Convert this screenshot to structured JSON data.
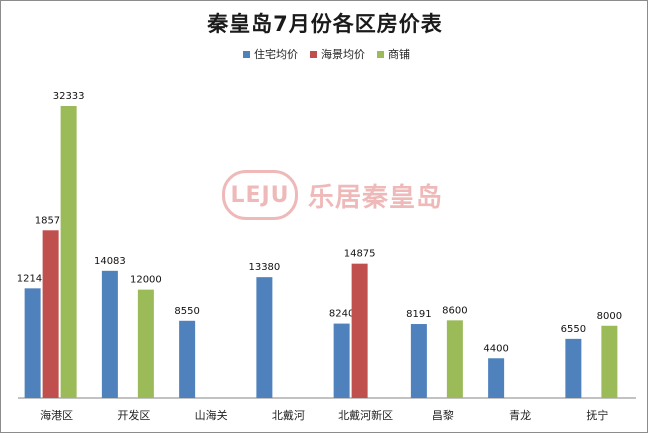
{
  "chart_data": {
    "type": "bar",
    "title": "秦皇岛7月份各区房价表",
    "categories": [
      "海港区",
      "开发区",
      "山海关",
      "北戴河",
      "北戴河新区",
      "昌黎",
      "青龙",
      "抚宁"
    ],
    "series": [
      {
        "name": "住宅均价",
        "color": "#4f81bd",
        "values": [
          12143,
          14083,
          8550,
          13380,
          8240,
          8191,
          4400,
          6550
        ]
      },
      {
        "name": "海景均价",
        "color": "#c0504d",
        "values": [
          18571,
          null,
          null,
          null,
          14875,
          null,
          null,
          null
        ]
      },
      {
        "name": "商铺",
        "color": "#9bbb59",
        "values": [
          32333,
          12000,
          null,
          null,
          null,
          8600,
          null,
          8000
        ]
      }
    ],
    "ylim": [
      0,
      34000
    ],
    "grid": false,
    "legend_position": "top"
  },
  "watermark": {
    "badge": "LEJU",
    "text": "乐居秦皇岛"
  }
}
